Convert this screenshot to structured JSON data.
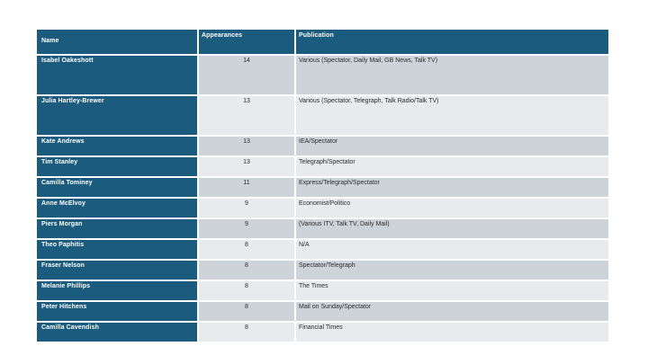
{
  "colors": {
    "header_bg": "#1B5B7E",
    "header_text": "#FFFFFF",
    "row_dark": "#CED3DA",
    "row_light": "#E8EAED",
    "cell_text": "#2B2B2B"
  },
  "chart_data": {
    "type": "table",
    "columns": [
      "Name",
      "Appearances",
      "Publication"
    ],
    "rows": [
      {
        "name": "Isabel Oakeshott",
        "appearances": "14",
        "publication": "Various (Spectator, Daily Mail, GB News, Talk TV)"
      },
      {
        "name": "Julia Hartley-Brewer",
        "appearances": "13",
        "publication": "Various (Spectator, Telegraph, Talk Radio/Talk TV)"
      },
      {
        "name": "Kate Andrews",
        "appearances": "13",
        "publication": "IEA/Spectator"
      },
      {
        "name": "Tim Stanley",
        "appearances": "13",
        "publication": "Telegraph/Spectator"
      },
      {
        "name": "Camilla Tominey",
        "appearances": "11",
        "publication": "Express/Telegraph/Spectator"
      },
      {
        "name": "Anne McElvoy",
        "appearances": "9",
        "publication": "Economist/Politico"
      },
      {
        "name": "Piers Morgan",
        "appearances": "9",
        "publication": "(Various ITV, Talk TV, Daily Mail)"
      },
      {
        "name": "Theo Paphitis",
        "appearances": "8",
        "publication": "N/A"
      },
      {
        "name": "Fraser Nelson",
        "appearances": "8",
        "publication": "Spectator/Telegraph"
      },
      {
        "name": "Melanie Phillips",
        "appearances": "8",
        "publication": "The Times"
      },
      {
        "name": "Peter Hitchens",
        "appearances": "8",
        "publication": "Mail on Sunday/Spectator"
      },
      {
        "name": "Camilla Cavendish",
        "appearances": "8",
        "publication": "Financial Times"
      }
    ]
  }
}
